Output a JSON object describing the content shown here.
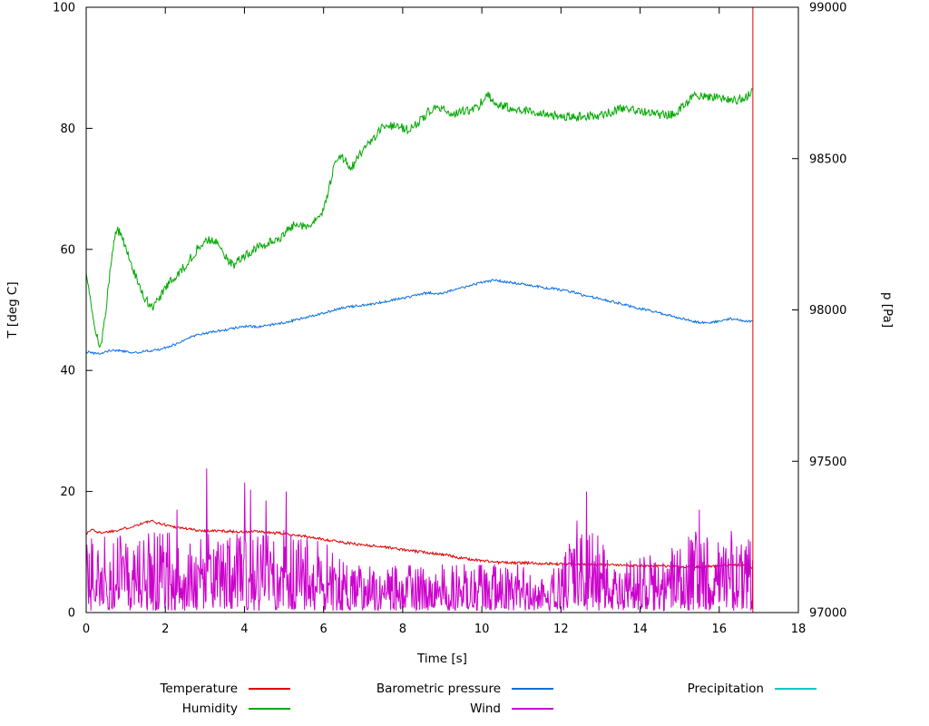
{
  "chart_data": {
    "type": "line",
    "title": "",
    "xlabel": "Time [s]",
    "ylabel": "T [deg C]",
    "y2label": "p [Pa]",
    "xlim": [
      0,
      18
    ],
    "ylim_left": [
      0,
      100
    ],
    "ylim_right": [
      97000,
      99000
    ],
    "xticks": [
      0,
      2,
      4,
      6,
      8,
      10,
      12,
      14,
      16,
      18
    ],
    "yticks_left": [
      0,
      20,
      40,
      60,
      80,
      100
    ],
    "yticks_right": [
      97000,
      97500,
      98000,
      98500,
      99000
    ],
    "grid": false,
    "legend_position": "bottom",
    "seed": 1337,
    "dt": 0.02,
    "series": [
      {
        "id": "temperature",
        "name": "Temperature",
        "color": "#e00000",
        "axis": "left",
        "style": "line",
        "jitter": 0.22,
        "points": [
          [
            0,
            13.0
          ],
          [
            0.15,
            13.8
          ],
          [
            0.3,
            13.2
          ],
          [
            0.5,
            13.3
          ],
          [
            0.7,
            13.5
          ],
          [
            0.9,
            13.8
          ],
          [
            1.1,
            14.1
          ],
          [
            1.3,
            14.5
          ],
          [
            1.5,
            14.9
          ],
          [
            1.65,
            15.1
          ],
          [
            1.8,
            14.8
          ],
          [
            2.0,
            14.5
          ],
          [
            2.2,
            14.2
          ],
          [
            2.5,
            13.9
          ],
          [
            2.8,
            13.6
          ],
          [
            3.1,
            13.5
          ],
          [
            3.4,
            13.5
          ],
          [
            3.7,
            13.4
          ],
          [
            4.0,
            13.3
          ],
          [
            4.3,
            13.4
          ],
          [
            4.6,
            13.2
          ],
          [
            4.9,
            13.1
          ],
          [
            5.2,
            12.9
          ],
          [
            5.5,
            12.6
          ],
          [
            5.8,
            12.3
          ],
          [
            6.1,
            12.0
          ],
          [
            6.4,
            11.7
          ],
          [
            6.7,
            11.4
          ],
          [
            7.0,
            11.2
          ],
          [
            7.3,
            11.0
          ],
          [
            7.6,
            10.8
          ],
          [
            7.9,
            10.5
          ],
          [
            8.2,
            10.2
          ],
          [
            8.5,
            10.0
          ],
          [
            8.8,
            9.8
          ],
          [
            9.1,
            9.5
          ],
          [
            9.4,
            9.1
          ],
          [
            9.7,
            8.8
          ],
          [
            10.0,
            8.6
          ],
          [
            10.4,
            8.3
          ],
          [
            10.8,
            8.2
          ],
          [
            11.2,
            8.2
          ],
          [
            11.6,
            8.1
          ],
          [
            12.0,
            8.0
          ],
          [
            12.5,
            8.0
          ],
          [
            13.0,
            7.9
          ],
          [
            13.5,
            7.8
          ],
          [
            14.0,
            7.8
          ],
          [
            14.5,
            7.7
          ],
          [
            15.0,
            7.5
          ],
          [
            15.4,
            7.5
          ],
          [
            15.8,
            7.7
          ],
          [
            16.2,
            7.8
          ],
          [
            16.6,
            7.8
          ],
          [
            16.85,
            7.4
          ]
        ]
      },
      {
        "id": "humidity",
        "name": "Humidity",
        "color": "#00a800",
        "axis": "left",
        "style": "line",
        "jitter": 0.75,
        "points": [
          [
            0,
            56
          ],
          [
            0.1,
            52
          ],
          [
            0.2,
            47.5
          ],
          [
            0.3,
            44.8
          ],
          [
            0.38,
            44
          ],
          [
            0.5,
            50
          ],
          [
            0.6,
            56
          ],
          [
            0.7,
            61
          ],
          [
            0.78,
            63.5
          ],
          [
            0.9,
            62
          ],
          [
            1.0,
            60.5
          ],
          [
            1.1,
            58.5
          ],
          [
            1.2,
            56.5
          ],
          [
            1.3,
            54.5
          ],
          [
            1.4,
            53
          ],
          [
            1.5,
            51.8
          ],
          [
            1.6,
            51
          ],
          [
            1.7,
            50.5
          ],
          [
            1.8,
            51.5
          ],
          [
            1.9,
            52.5
          ],
          [
            2.0,
            53.5
          ],
          [
            2.1,
            54.5
          ],
          [
            2.2,
            55.2
          ],
          [
            2.35,
            56.3
          ],
          [
            2.5,
            57.3
          ],
          [
            2.65,
            58.6
          ],
          [
            2.8,
            60
          ],
          [
            2.95,
            61.2
          ],
          [
            3.1,
            61.6
          ],
          [
            3.25,
            61.2
          ],
          [
            3.4,
            60.5
          ],
          [
            3.55,
            58.5
          ],
          [
            3.7,
            57.3
          ],
          [
            3.85,
            58.2
          ],
          [
            4.0,
            59
          ],
          [
            4.15,
            59.6
          ],
          [
            4.3,
            60.1
          ],
          [
            4.5,
            60.7
          ],
          [
            4.7,
            61.3
          ],
          [
            4.9,
            62
          ],
          [
            5.05,
            62.8
          ],
          [
            5.2,
            63.8
          ],
          [
            5.35,
            64.4
          ],
          [
            5.5,
            63.8
          ],
          [
            5.65,
            64
          ],
          [
            5.8,
            64.8
          ],
          [
            5.95,
            65.3
          ],
          [
            6.05,
            67.5
          ],
          [
            6.15,
            70.5
          ],
          [
            6.25,
            73.5
          ],
          [
            6.35,
            75.5
          ],
          [
            6.45,
            75.2
          ],
          [
            6.55,
            74.8
          ],
          [
            6.65,
            73.5
          ],
          [
            6.75,
            73.8
          ],
          [
            6.85,
            75
          ],
          [
            6.95,
            75.8
          ],
          [
            7.1,
            77
          ],
          [
            7.25,
            78.3
          ],
          [
            7.4,
            79.4
          ],
          [
            7.55,
            80.4
          ],
          [
            7.7,
            80.5
          ],
          [
            7.85,
            80.2
          ],
          [
            8.0,
            80.1
          ],
          [
            8.15,
            79.7
          ],
          [
            8.3,
            80.4
          ],
          [
            8.45,
            81.4
          ],
          [
            8.6,
            82.4
          ],
          [
            8.75,
            83.4
          ],
          [
            8.85,
            84
          ],
          [
            9.0,
            83.2
          ],
          [
            9.15,
            82.5
          ],
          [
            9.3,
            82.2
          ],
          [
            9.45,
            82.6
          ],
          [
            9.6,
            83
          ],
          [
            9.75,
            83.1
          ],
          [
            9.9,
            83.6
          ],
          [
            10.05,
            84.8
          ],
          [
            10.15,
            85.4
          ],
          [
            10.3,
            84.6
          ],
          [
            10.45,
            83.9
          ],
          [
            10.6,
            83.6
          ],
          [
            10.8,
            83.4
          ],
          [
            11.0,
            83.1
          ],
          [
            11.2,
            82.8
          ],
          [
            11.4,
            82.6
          ],
          [
            11.6,
            82.4
          ],
          [
            11.8,
            82.2
          ],
          [
            12.0,
            82.1
          ],
          [
            12.3,
            82
          ],
          [
            12.6,
            82
          ],
          [
            12.9,
            82.1
          ],
          [
            13.2,
            82.6
          ],
          [
            13.45,
            83.1
          ],
          [
            13.6,
            83.5
          ],
          [
            13.75,
            83.2
          ],
          [
            13.9,
            83.1
          ],
          [
            14.1,
            82.8
          ],
          [
            14.3,
            82.6
          ],
          [
            14.5,
            82.3
          ],
          [
            14.7,
            82.2
          ],
          [
            14.9,
            82.6
          ],
          [
            15.1,
            83.8
          ],
          [
            15.3,
            84.9
          ],
          [
            15.45,
            85.5
          ],
          [
            15.6,
            85.4
          ],
          [
            15.8,
            85.1
          ],
          [
            16.0,
            85
          ],
          [
            16.2,
            84.6
          ],
          [
            16.4,
            84.6
          ],
          [
            16.6,
            85
          ],
          [
            16.75,
            85.4
          ],
          [
            16.85,
            86
          ]
        ]
      },
      {
        "id": "pressure",
        "name": "Barometric pressure",
        "color": "#0a70e0",
        "axis": "right",
        "style": "line",
        "jitter": 4,
        "points": [
          [
            0,
            97862
          ],
          [
            0.2,
            97857
          ],
          [
            0.35,
            97854
          ],
          [
            0.5,
            97862
          ],
          [
            0.7,
            97867
          ],
          [
            0.9,
            97864
          ],
          [
            1.1,
            97861
          ],
          [
            1.3,
            97859
          ],
          [
            1.5,
            97864
          ],
          [
            1.7,
            97867
          ],
          [
            1.9,
            97871
          ],
          [
            2.1,
            97879
          ],
          [
            2.3,
            97889
          ],
          [
            2.5,
            97903
          ],
          [
            2.7,
            97913
          ],
          [
            2.9,
            97921
          ],
          [
            3.1,
            97925
          ],
          [
            3.3,
            97929
          ],
          [
            3.5,
            97934
          ],
          [
            3.7,
            97939
          ],
          [
            3.9,
            97944
          ],
          [
            4.1,
            97947
          ],
          [
            4.3,
            97944
          ],
          [
            4.5,
            97947
          ],
          [
            4.7,
            97951
          ],
          [
            4.9,
            97955
          ],
          [
            5.1,
            97961
          ],
          [
            5.3,
            97967
          ],
          [
            5.5,
            97974
          ],
          [
            5.7,
            97980
          ],
          [
            5.9,
            97987
          ],
          [
            6.1,
            97994
          ],
          [
            6.3,
            98000
          ],
          [
            6.5,
            98007
          ],
          [
            6.7,
            98011
          ],
          [
            6.9,
            98014
          ],
          [
            7.1,
            98017
          ],
          [
            7.3,
            98020
          ],
          [
            7.5,
            98027
          ],
          [
            7.7,
            98031
          ],
          [
            7.9,
            98037
          ],
          [
            8.1,
            98041
          ],
          [
            8.3,
            98047
          ],
          [
            8.5,
            98054
          ],
          [
            8.7,
            98057
          ],
          [
            8.9,
            98052
          ],
          [
            9.1,
            98058
          ],
          [
            9.3,
            98067
          ],
          [
            9.5,
            98074
          ],
          [
            9.7,
            98079
          ],
          [
            9.9,
            98087
          ],
          [
            10.1,
            98094
          ],
          [
            10.3,
            98098
          ],
          [
            10.5,
            98095
          ],
          [
            10.7,
            98091
          ],
          [
            10.9,
            98087
          ],
          [
            11.1,
            98084
          ],
          [
            11.3,
            98079
          ],
          [
            11.5,
            98075
          ],
          [
            11.7,
            98072
          ],
          [
            11.9,
            98069
          ],
          [
            12.1,
            98064
          ],
          [
            12.3,
            98059
          ],
          [
            12.5,
            98051
          ],
          [
            12.7,
            98044
          ],
          [
            12.9,
            98039
          ],
          [
            13.1,
            98034
          ],
          [
            13.3,
            98027
          ],
          [
            13.5,
            98021
          ],
          [
            13.7,
            98014
          ],
          [
            13.9,
            98007
          ],
          [
            14.1,
            98001
          ],
          [
            14.3,
            97997
          ],
          [
            14.5,
            97989
          ],
          [
            14.7,
            97984
          ],
          [
            14.9,
            97977
          ],
          [
            15.1,
            97971
          ],
          [
            15.3,
            97964
          ],
          [
            15.5,
            97959
          ],
          [
            15.7,
            97957
          ],
          [
            15.9,
            97961
          ],
          [
            16.1,
            97967
          ],
          [
            16.3,
            97971
          ],
          [
            16.5,
            97967
          ],
          [
            16.65,
            97964
          ],
          [
            16.85,
            97961
          ]
        ]
      },
      {
        "id": "wind",
        "name": "Wind",
        "color": "#cc00cc",
        "axis": "left",
        "style": "noise",
        "base": 0.3,
        "power": 1.4,
        "dt": 0.015,
        "t_end": 16.85,
        "envelope": [
          [
            0,
            12
          ],
          [
            0.5,
            13
          ],
          [
            1.0,
            13
          ],
          [
            1.5,
            13
          ],
          [
            2.0,
            14
          ],
          [
            2.5,
            13
          ],
          [
            3.0,
            13
          ],
          [
            3.5,
            13
          ],
          [
            4.0,
            14
          ],
          [
            4.5,
            13
          ],
          [
            5.0,
            14
          ],
          [
            5.5,
            13
          ],
          [
            6.0,
            12
          ],
          [
            6.3,
            10
          ],
          [
            6.6,
            9
          ],
          [
            7.0,
            8
          ],
          [
            7.5,
            8
          ],
          [
            8.0,
            8
          ],
          [
            8.5,
            8
          ],
          [
            9.0,
            8
          ],
          [
            9.5,
            8
          ],
          [
            10.0,
            8
          ],
          [
            10.5,
            8
          ],
          [
            11.0,
            8
          ],
          [
            11.5,
            8
          ],
          [
            12.0,
            9
          ],
          [
            12.3,
            13
          ],
          [
            12.6,
            14
          ],
          [
            12.9,
            13
          ],
          [
            13.2,
            10
          ],
          [
            13.5,
            9
          ],
          [
            14.0,
            9
          ],
          [
            14.5,
            10
          ],
          [
            15.0,
            12
          ],
          [
            15.3,
            14
          ],
          [
            15.6,
            13
          ],
          [
            16.0,
            12
          ],
          [
            16.4,
            12
          ],
          [
            16.85,
            13
          ]
        ],
        "spikes": [
          [
            2.3,
            17
          ],
          [
            3.05,
            23.8
          ],
          [
            4.0,
            21.5
          ],
          [
            4.15,
            20.3
          ],
          [
            4.55,
            18.5
          ],
          [
            5.05,
            20
          ],
          [
            12.4,
            15.2
          ],
          [
            12.65,
            20
          ],
          [
            15.5,
            17
          ],
          [
            16.3,
            13.5
          ]
        ]
      },
      {
        "id": "precipitation",
        "name": "Precipitation",
        "color": "#00c8c8",
        "axis": "left",
        "style": "line",
        "jitter": 0,
        "points": []
      }
    ],
    "annotations": [
      {
        "type": "vline",
        "x": 16.85,
        "y_from": 0,
        "y_to": 100,
        "color": "#e00000"
      }
    ]
  }
}
